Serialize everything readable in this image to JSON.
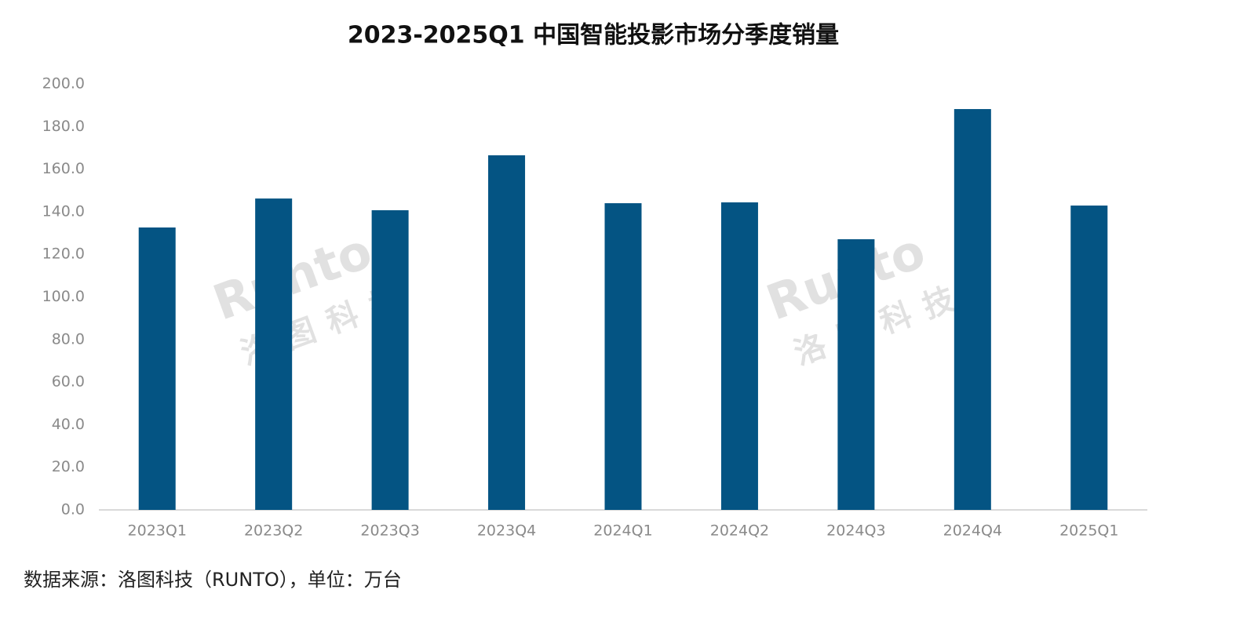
{
  "chart_data": {
    "type": "bar",
    "title": "2023-2025Q1 中国智能投影市场分季度销量",
    "categories": [
      "2023Q1",
      "2023Q2",
      "2023Q3",
      "2023Q4",
      "2024Q1",
      "2024Q2",
      "2024Q3",
      "2024Q4",
      "2025Q1"
    ],
    "values": [
      132.6,
      146.2,
      140.7,
      166.5,
      144.0,
      144.4,
      127.1,
      188.2,
      142.9
    ],
    "color": "#045483",
    "ylim": [
      0,
      200
    ],
    "yticks": [
      {
        "value": 0,
        "label": "0.0"
      },
      {
        "value": 20,
        "label": "20.0"
      },
      {
        "value": 40,
        "label": "40.0"
      },
      {
        "value": 60,
        "label": "60.0"
      },
      {
        "value": 80,
        "label": "80.0"
      },
      {
        "value": 100,
        "label": "100.0"
      },
      {
        "value": 120,
        "label": "120.0"
      },
      {
        "value": 140,
        "label": "140.0"
      },
      {
        "value": 160,
        "label": "160.0"
      },
      {
        "value": 180,
        "label": "180.0"
      },
      {
        "value": 200,
        "label": "200.0"
      }
    ],
    "grid": false,
    "watermark": [
      "Runto",
      "洛图科技"
    ],
    "source": "数据来源：洛图科技（RUNTO），单位：万台"
  }
}
